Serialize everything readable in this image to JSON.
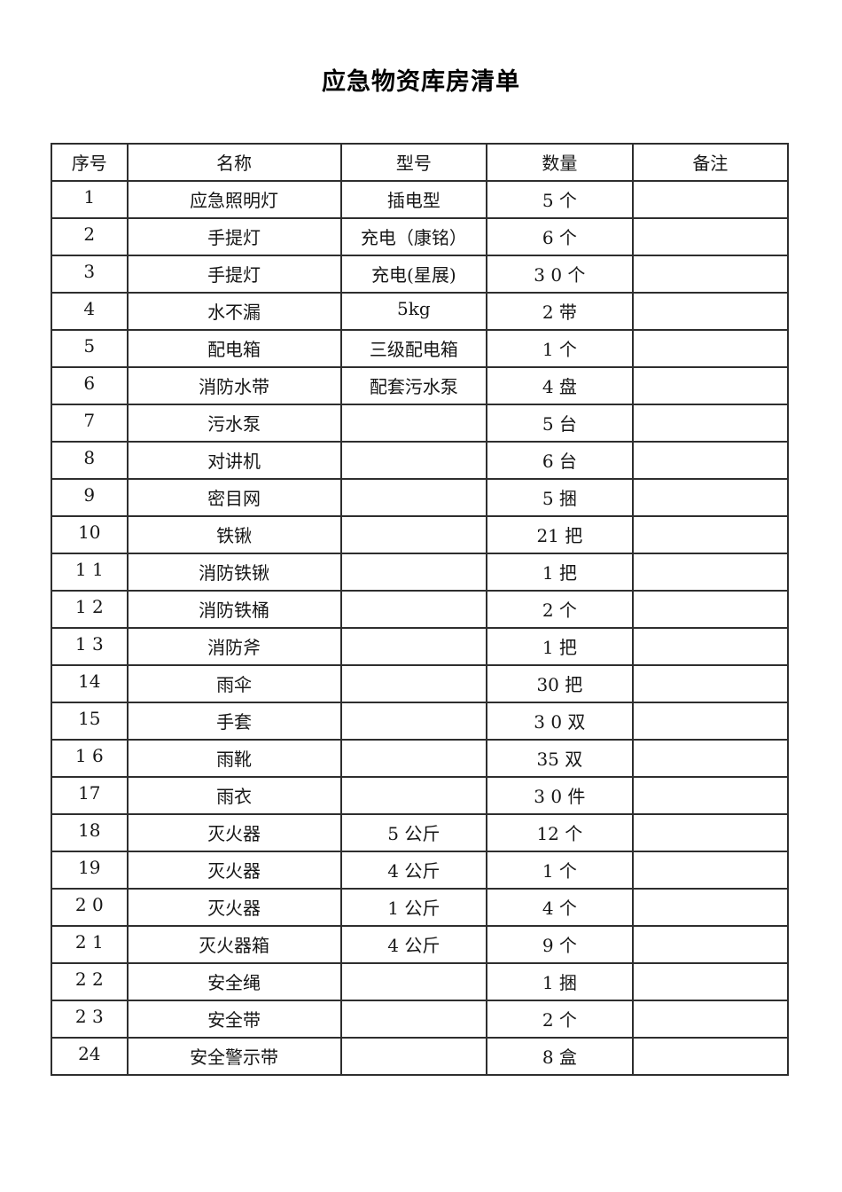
{
  "title": "应急物资库房清单",
  "table": {
    "columns": [
      "序号",
      "名称",
      "型号",
      "数量",
      "备注"
    ],
    "column_keys": [
      "no",
      "name",
      "model",
      "qty",
      "remark"
    ],
    "rows": [
      {
        "no": "1",
        "name": "应急照明灯",
        "model": "插电型",
        "qty": "5 个",
        "remark": ""
      },
      {
        "no": "2",
        "name": "手提灯",
        "model": "充电（康铭）",
        "qty": "6 个",
        "remark": ""
      },
      {
        "no": "3",
        "name": "手提灯",
        "model": "充电(星展)",
        "qty": "3 0 个",
        "remark": ""
      },
      {
        "no": "4",
        "name": "水不漏",
        "model": "5kg",
        "qty": "2 带",
        "remark": ""
      },
      {
        "no": "5",
        "name": "配电箱",
        "model": "三级配电箱",
        "qty": "1 个",
        "remark": ""
      },
      {
        "no": "6",
        "name": "消防水带",
        "model": "配套污水泵",
        "qty": "4 盘",
        "remark": ""
      },
      {
        "no": "7",
        "name": "污水泵",
        "model": "",
        "qty": "5 台",
        "remark": ""
      },
      {
        "no": "8",
        "name": "对讲机",
        "model": "",
        "qty": "6 台",
        "remark": ""
      },
      {
        "no": "9",
        "name": "密目网",
        "model": "",
        "qty": "5 捆",
        "remark": ""
      },
      {
        "no": "10",
        "name": "铁锹",
        "model": "",
        "qty": "21 把",
        "remark": ""
      },
      {
        "no": "1 1",
        "name": "消防铁锹",
        "model": "",
        "qty": "1 把",
        "remark": ""
      },
      {
        "no": "1 2",
        "name": "消防铁桶",
        "model": "",
        "qty": "2 个",
        "remark": ""
      },
      {
        "no": "1 3",
        "name": "消防斧",
        "model": "",
        "qty": "1 把",
        "remark": ""
      },
      {
        "no": "14",
        "name": "雨伞",
        "model": "",
        "qty": "30 把",
        "remark": ""
      },
      {
        "no": "15",
        "name": "手套",
        "model": "",
        "qty": "3 0 双",
        "remark": ""
      },
      {
        "no": "1 6",
        "name": "雨靴",
        "model": "",
        "qty": "35 双",
        "remark": ""
      },
      {
        "no": "17",
        "name": "雨衣",
        "model": "",
        "qty": "3 0 件",
        "remark": ""
      },
      {
        "no": "18",
        "name": "灭火器",
        "model": "5 公斤",
        "qty": "12 个",
        "remark": ""
      },
      {
        "no": "19",
        "name": "灭火器",
        "model": "4 公斤",
        "qty": "1 个",
        "remark": ""
      },
      {
        "no": "2 0",
        "name": "灭火器",
        "model": "1 公斤",
        "qty": "4 个",
        "remark": ""
      },
      {
        "no": "2 1",
        "name": "灭火器箱",
        "model": "4 公斤",
        "qty": "9 个",
        "remark": ""
      },
      {
        "no": "2 2",
        "name": "安全绳",
        "model": "",
        "qty": "1 捆",
        "remark": ""
      },
      {
        "no": "2 3",
        "name": "安全带",
        "model": "",
        "qty": "2 个",
        "remark": ""
      },
      {
        "no": "24",
        "name": "安全警示带",
        "model": "",
        "qty": "8 盒",
        "remark": ""
      }
    ]
  }
}
